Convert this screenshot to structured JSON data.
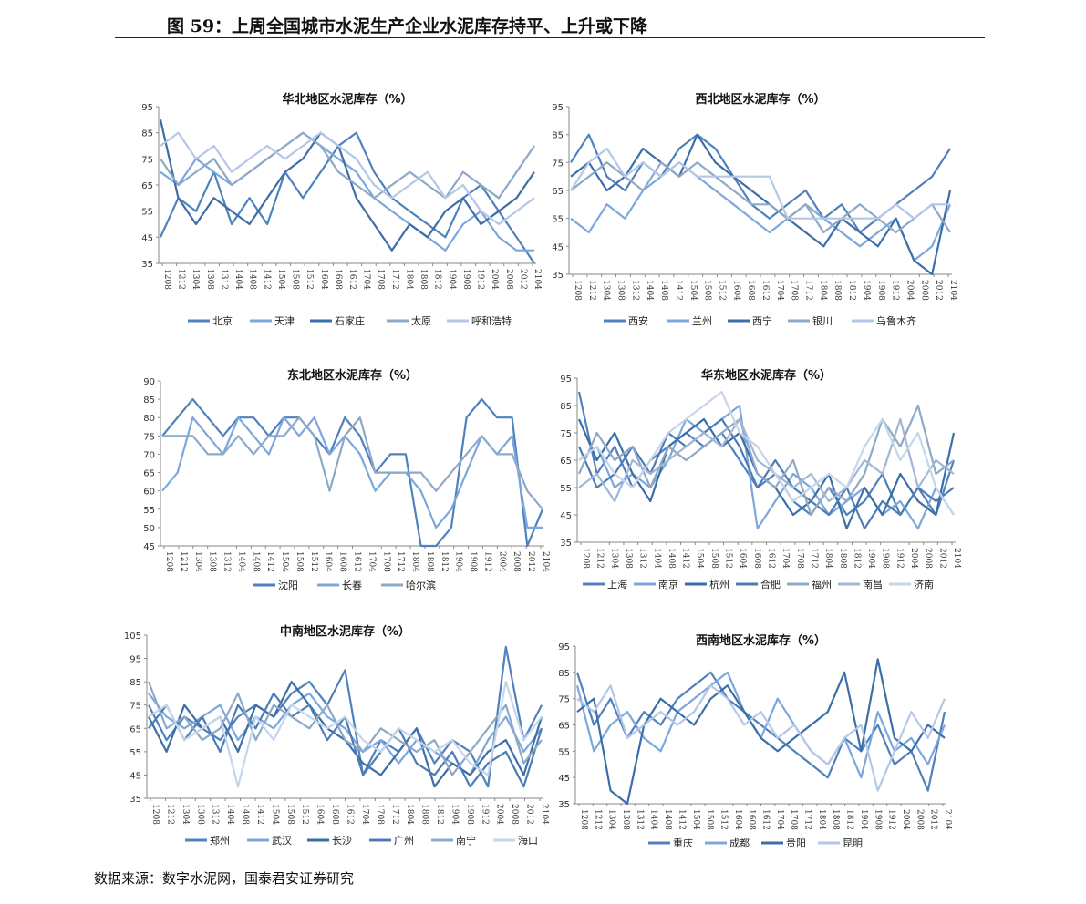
{
  "figure": {
    "title": "图 59：上周全国城市水泥生产企业水泥库存持平、上升或下降",
    "source": "数据来源：数字水泥网，国泰君安证券研究"
  },
  "chart_data": [
    {
      "type": "line",
      "title": "华北地区水泥库存（%）",
      "ylim": [
        35,
        95
      ],
      "yticks": [
        35,
        45,
        55,
        65,
        75,
        85,
        95
      ],
      "xlabels": [
        "1208",
        "1212",
        "1304",
        "1308",
        "1312",
        "1404",
        "1408",
        "1412",
        "1504",
        "1508",
        "1512",
        "1604",
        "1608",
        "1612",
        "1704",
        "1708",
        "1712",
        "1804",
        "1808",
        "1812",
        "1904",
        "1908",
        "1912",
        "2004",
        "2008",
        "2012",
        "2104"
      ],
      "series": [
        {
          "name": "北京",
          "color": "#4F81BD",
          "values": [
            45,
            60,
            55,
            70,
            50,
            60,
            50,
            70,
            60,
            70,
            80,
            85,
            70,
            60,
            55,
            50,
            45,
            60,
            65,
            55,
            45,
            35
          ]
        },
        {
          "name": "天津",
          "color": "#7BA7DC",
          "values": [
            70,
            65,
            75,
            70,
            65,
            70,
            75,
            80,
            85,
            80,
            75,
            70,
            60,
            55,
            50,
            45,
            40,
            50,
            55,
            45,
            40,
            40
          ]
        },
        {
          "name": "石家庄",
          "color": "#3C6EA8",
          "values": [
            90,
            60,
            50,
            60,
            55,
            50,
            60,
            70,
            75,
            85,
            80,
            60,
            50,
            40,
            50,
            45,
            55,
            60,
            50,
            55,
            60,
            70
          ]
        },
        {
          "name": "太原",
          "color": "#8EA9C8",
          "values": [
            75,
            65,
            70,
            75,
            65,
            70,
            75,
            80,
            85,
            80,
            70,
            65,
            60,
            65,
            70,
            65,
            60,
            70,
            65,
            60,
            70,
            80
          ]
        },
        {
          "name": "呼和浩特",
          "color": "#B4C7E7",
          "values": [
            80,
            85,
            75,
            80,
            70,
            75,
            80,
            75,
            80,
            85,
            80,
            75,
            65,
            60,
            65,
            70,
            60,
            65,
            55,
            50,
            55,
            60
          ]
        }
      ]
    },
    {
      "type": "line",
      "title": "西北地区水泥库存（%）",
      "ylim": [
        35,
        95
      ],
      "yticks": [
        35,
        45,
        55,
        65,
        75,
        85,
        95
      ],
      "xlabels": [
        "1208",
        "1212",
        "1304",
        "1308",
        "1312",
        "1404",
        "1408",
        "1412",
        "1504",
        "1508",
        "1512",
        "1604",
        "1608",
        "1612",
        "1704",
        "1708",
        "1712",
        "1804",
        "1808",
        "1812",
        "1904",
        "1908",
        "1912",
        "2004",
        "2008",
        "2012",
        "2104"
      ],
      "series": [
        {
          "name": "西安",
          "color": "#4F81BD",
          "values": [
            75,
            85,
            70,
            65,
            75,
            70,
            80,
            85,
            80,
            70,
            60,
            55,
            60,
            65,
            55,
            60,
            50,
            55,
            60,
            65,
            70,
            80
          ]
        },
        {
          "name": "兰州",
          "color": "#7BA7DC",
          "values": [
            55,
            50,
            60,
            55,
            65,
            70,
            75,
            70,
            65,
            60,
            55,
            50,
            55,
            60,
            55,
            50,
            45,
            50,
            55,
            40,
            45,
            60
          ]
        },
        {
          "name": "西宁",
          "color": "#3C6EA8",
          "values": [
            70,
            75,
            65,
            70,
            80,
            75,
            70,
            85,
            75,
            70,
            65,
            60,
            55,
            50,
            45,
            55,
            50,
            45,
            55,
            40,
            35,
            65
          ]
        },
        {
          "name": "银川",
          "color": "#8EA9C8",
          "values": [
            65,
            70,
            75,
            70,
            65,
            75,
            70,
            75,
            70,
            65,
            60,
            60,
            55,
            60,
            50,
            55,
            60,
            55,
            50,
            55,
            60,
            50
          ]
        },
        {
          "name": "乌鲁木齐",
          "color": "#B4C7E7",
          "values": [
            65,
            75,
            80,
            70,
            75,
            70,
            75,
            70,
            70,
            70,
            70,
            70,
            55,
            55,
            55,
            55,
            55,
            55,
            60,
            55,
            60,
            60
          ]
        }
      ]
    },
    {
      "type": "line",
      "title": "东北地区水泥库存（%）",
      "ylim": [
        45,
        90
      ],
      "yticks": [
        45,
        50,
        55,
        60,
        65,
        70,
        75,
        80,
        85,
        90
      ],
      "xlabels": [
        "1208",
        "1212",
        "1304",
        "1308",
        "1312",
        "1404",
        "1408",
        "1412",
        "1504",
        "1508",
        "1512",
        "1604",
        "1608",
        "1612",
        "1704",
        "1708",
        "1712",
        "1804",
        "1808",
        "1812",
        "1904",
        "1908",
        "1912",
        "2004",
        "2008",
        "2012",
        "2104"
      ],
      "series": [
        {
          "name": "沈阳",
          "color": "#4F81BD",
          "values": [
            75,
            80,
            85,
            80,
            75,
            80,
            80,
            75,
            80,
            80,
            75,
            70,
            80,
            75,
            65,
            70,
            70,
            45,
            45,
            50,
            80,
            85,
            80,
            80,
            45,
            55
          ]
        },
        {
          "name": "长春",
          "color": "#7BA7DC",
          "values": [
            60,
            65,
            80,
            75,
            70,
            80,
            75,
            70,
            80,
            75,
            80,
            70,
            75,
            70,
            60,
            65,
            65,
            60,
            50,
            55,
            65,
            75,
            70,
            75,
            50,
            50
          ]
        },
        {
          "name": "哈尔滨",
          "color": "#8EA9C8",
          "values": [
            75,
            75,
            75,
            70,
            70,
            75,
            70,
            75,
            75,
            80,
            75,
            60,
            75,
            80,
            65,
            65,
            65,
            65,
            60,
            65,
            70,
            75,
            70,
            70,
            60,
            55
          ]
        }
      ]
    },
    {
      "type": "line",
      "title": "华东地区水泥库存（%）",
      "ylim": [
        35,
        95
      ],
      "yticks": [
        35,
        45,
        55,
        65,
        75,
        85,
        95
      ],
      "xlabels": [
        "1208",
        "1212",
        "1304",
        "1308",
        "1312",
        "1404",
        "1408",
        "1412",
        "1504",
        "1508",
        "1512",
        "1604",
        "1608",
        "1612",
        "1704",
        "1708",
        "1712",
        "1804",
        "1808",
        "1812",
        "1904",
        "1908",
        "1912",
        "2004",
        "2008",
        "2012",
        "2104"
      ],
      "series": [
        {
          "name": "上海",
          "color": "#4F81BD",
          "values": [
            90,
            60,
            70,
            55,
            65,
            70,
            75,
            70,
            75,
            65,
            55,
            60,
            50,
            45,
            55,
            45,
            50,
            60,
            45,
            55,
            45,
            65
          ]
        },
        {
          "name": "南京",
          "color": "#7BA7DC",
          "values": [
            65,
            70,
            55,
            60,
            55,
            65,
            80,
            75,
            80,
            85,
            40,
            50,
            60,
            55,
            45,
            50,
            55,
            45,
            50,
            40,
            55,
            45
          ]
        },
        {
          "name": "杭州",
          "color": "#3C6EA8",
          "values": [
            80,
            65,
            75,
            60,
            50,
            70,
            75,
            80,
            70,
            75,
            60,
            55,
            45,
            50,
            60,
            40,
            55,
            45,
            60,
            50,
            45,
            75
          ]
        },
        {
          "name": "合肥",
          "color": "#4D7CB5",
          "values": [
            70,
            55,
            60,
            70,
            60,
            75,
            70,
            75,
            80,
            70,
            55,
            65,
            55,
            50,
            45,
            55,
            40,
            50,
            45,
            55,
            50,
            55
          ]
        },
        {
          "name": "福州",
          "color": "#8EA9C8",
          "values": [
            60,
            75,
            65,
            70,
            55,
            70,
            65,
            70,
            75,
            80,
            60,
            55,
            65,
            45,
            55,
            50,
            60,
            80,
            70,
            85,
            60,
            65
          ]
        },
        {
          "name": "南昌",
          "color": "#A3B7D4",
          "values": [
            55,
            60,
            50,
            65,
            60,
            65,
            70,
            75,
            70,
            80,
            65,
            60,
            55,
            60,
            50,
            55,
            65,
            60,
            80,
            55,
            65,
            60
          ]
        },
        {
          "name": "济南",
          "color": "#C5D5EA",
          "values": [
            65,
            70,
            60,
            55,
            65,
            75,
            80,
            85,
            90,
            75,
            70,
            60,
            50,
            55,
            60,
            55,
            70,
            80,
            65,
            75,
            55,
            45
          ]
        }
      ]
    },
    {
      "type": "line",
      "title": "中南地区水泥库存（%）",
      "ylim": [
        35,
        105
      ],
      "yticks": [
        35,
        45,
        55,
        65,
        75,
        85,
        95,
        105
      ],
      "xlabels": [
        "1208",
        "1212",
        "1304",
        "1308",
        "1312",
        "1404",
        "1408",
        "1412",
        "1504",
        "1508",
        "1512",
        "1604",
        "1608",
        "1612",
        "1704",
        "1708",
        "1712",
        "1804",
        "1808",
        "1812",
        "1904",
        "1908",
        "1912",
        "2004",
        "2008",
        "2012",
        "2104"
      ],
      "series": [
        {
          "name": "郑州",
          "color": "#4F81BD",
          "values": [
            75,
            60,
            70,
            65,
            60,
            70,
            75,
            70,
            80,
            85,
            75,
            90,
            45,
            60,
            55,
            65,
            50,
            60,
            55,
            40,
            100,
            60,
            75
          ]
        },
        {
          "name": "武汉",
          "color": "#7BA7DC",
          "values": [
            80,
            70,
            65,
            70,
            75,
            60,
            70,
            65,
            75,
            80,
            70,
            65,
            55,
            60,
            50,
            60,
            55,
            50,
            45,
            60,
            70,
            55,
            65
          ]
        },
        {
          "name": "长沙",
          "color": "#3C6EA8",
          "values": [
            70,
            55,
            75,
            65,
            70,
            55,
            75,
            70,
            85,
            75,
            65,
            60,
            50,
            45,
            55,
            65,
            40,
            50,
            45,
            55,
            60,
            45,
            70
          ]
        },
        {
          "name": "广州",
          "color": "#4D7CB5",
          "values": [
            65,
            75,
            60,
            70,
            55,
            75,
            65,
            80,
            70,
            75,
            60,
            70,
            45,
            55,
            65,
            50,
            45,
            55,
            40,
            50,
            55,
            40,
            65
          ]
        },
        {
          "name": "南宁",
          "color": "#8EA9C8",
          "values": [
            85,
            65,
            70,
            60,
            65,
            80,
            60,
            75,
            70,
            65,
            75,
            60,
            55,
            65,
            60,
            55,
            60,
            45,
            55,
            65,
            75,
            50,
            60
          ]
        },
        {
          "name": "海口",
          "color": "#C5D5EA",
          "values": [
            70,
            75,
            60,
            65,
            70,
            40,
            70,
            60,
            75,
            70,
            65,
            70,
            60,
            55,
            65,
            60,
            55,
            60,
            50,
            45,
            85,
            60,
            70
          ]
        }
      ]
    },
    {
      "type": "line",
      "title": "西南地区水泥库存（%）",
      "ylim": [
        35,
        95
      ],
      "yticks": [
        35,
        45,
        55,
        65,
        75,
        85,
        95
      ],
      "xlabels": [
        "1208",
        "1212",
        "1304",
        "1308",
        "1312",
        "1404",
        "1408",
        "1412",
        "1504",
        "1508",
        "1512",
        "1604",
        "1608",
        "1612",
        "1704",
        "1708",
        "1712",
        "1804",
        "1808",
        "1812",
        "1904",
        "1908",
        "1912",
        "2004",
        "2008",
        "2012",
        "2104"
      ],
      "series": [
        {
          "name": "重庆",
          "color": "#4F81BD",
          "values": [
            85,
            65,
            75,
            60,
            70,
            65,
            75,
            80,
            85,
            75,
            70,
            65,
            60,
            55,
            50,
            45,
            60,
            55,
            65,
            50,
            55,
            40,
            70
          ]
        },
        {
          "name": "成都",
          "color": "#7BA7DC",
          "values": [
            80,
            55,
            65,
            70,
            60,
            55,
            70,
            75,
            80,
            85,
            70,
            60,
            75,
            65,
            55,
            50,
            60,
            45,
            70,
            55,
            60,
            50,
            65
          ]
        },
        {
          "name": "贵阳",
          "color": "#3C6EA8",
          "values": [
            70,
            75,
            40,
            35,
            65,
            75,
            70,
            65,
            75,
            80,
            70,
            60,
            55,
            60,
            65,
            70,
            85,
            55,
            90,
            60,
            55,
            65,
            60
          ]
        },
        {
          "name": "昆明",
          "color": "#B4C7E7",
          "values": [
            75,
            70,
            80,
            60,
            65,
            70,
            65,
            70,
            80,
            75,
            65,
            70,
            60,
            65,
            55,
            50,
            60,
            65,
            40,
            55,
            70,
            60,
            75
          ]
        }
      ]
    }
  ]
}
